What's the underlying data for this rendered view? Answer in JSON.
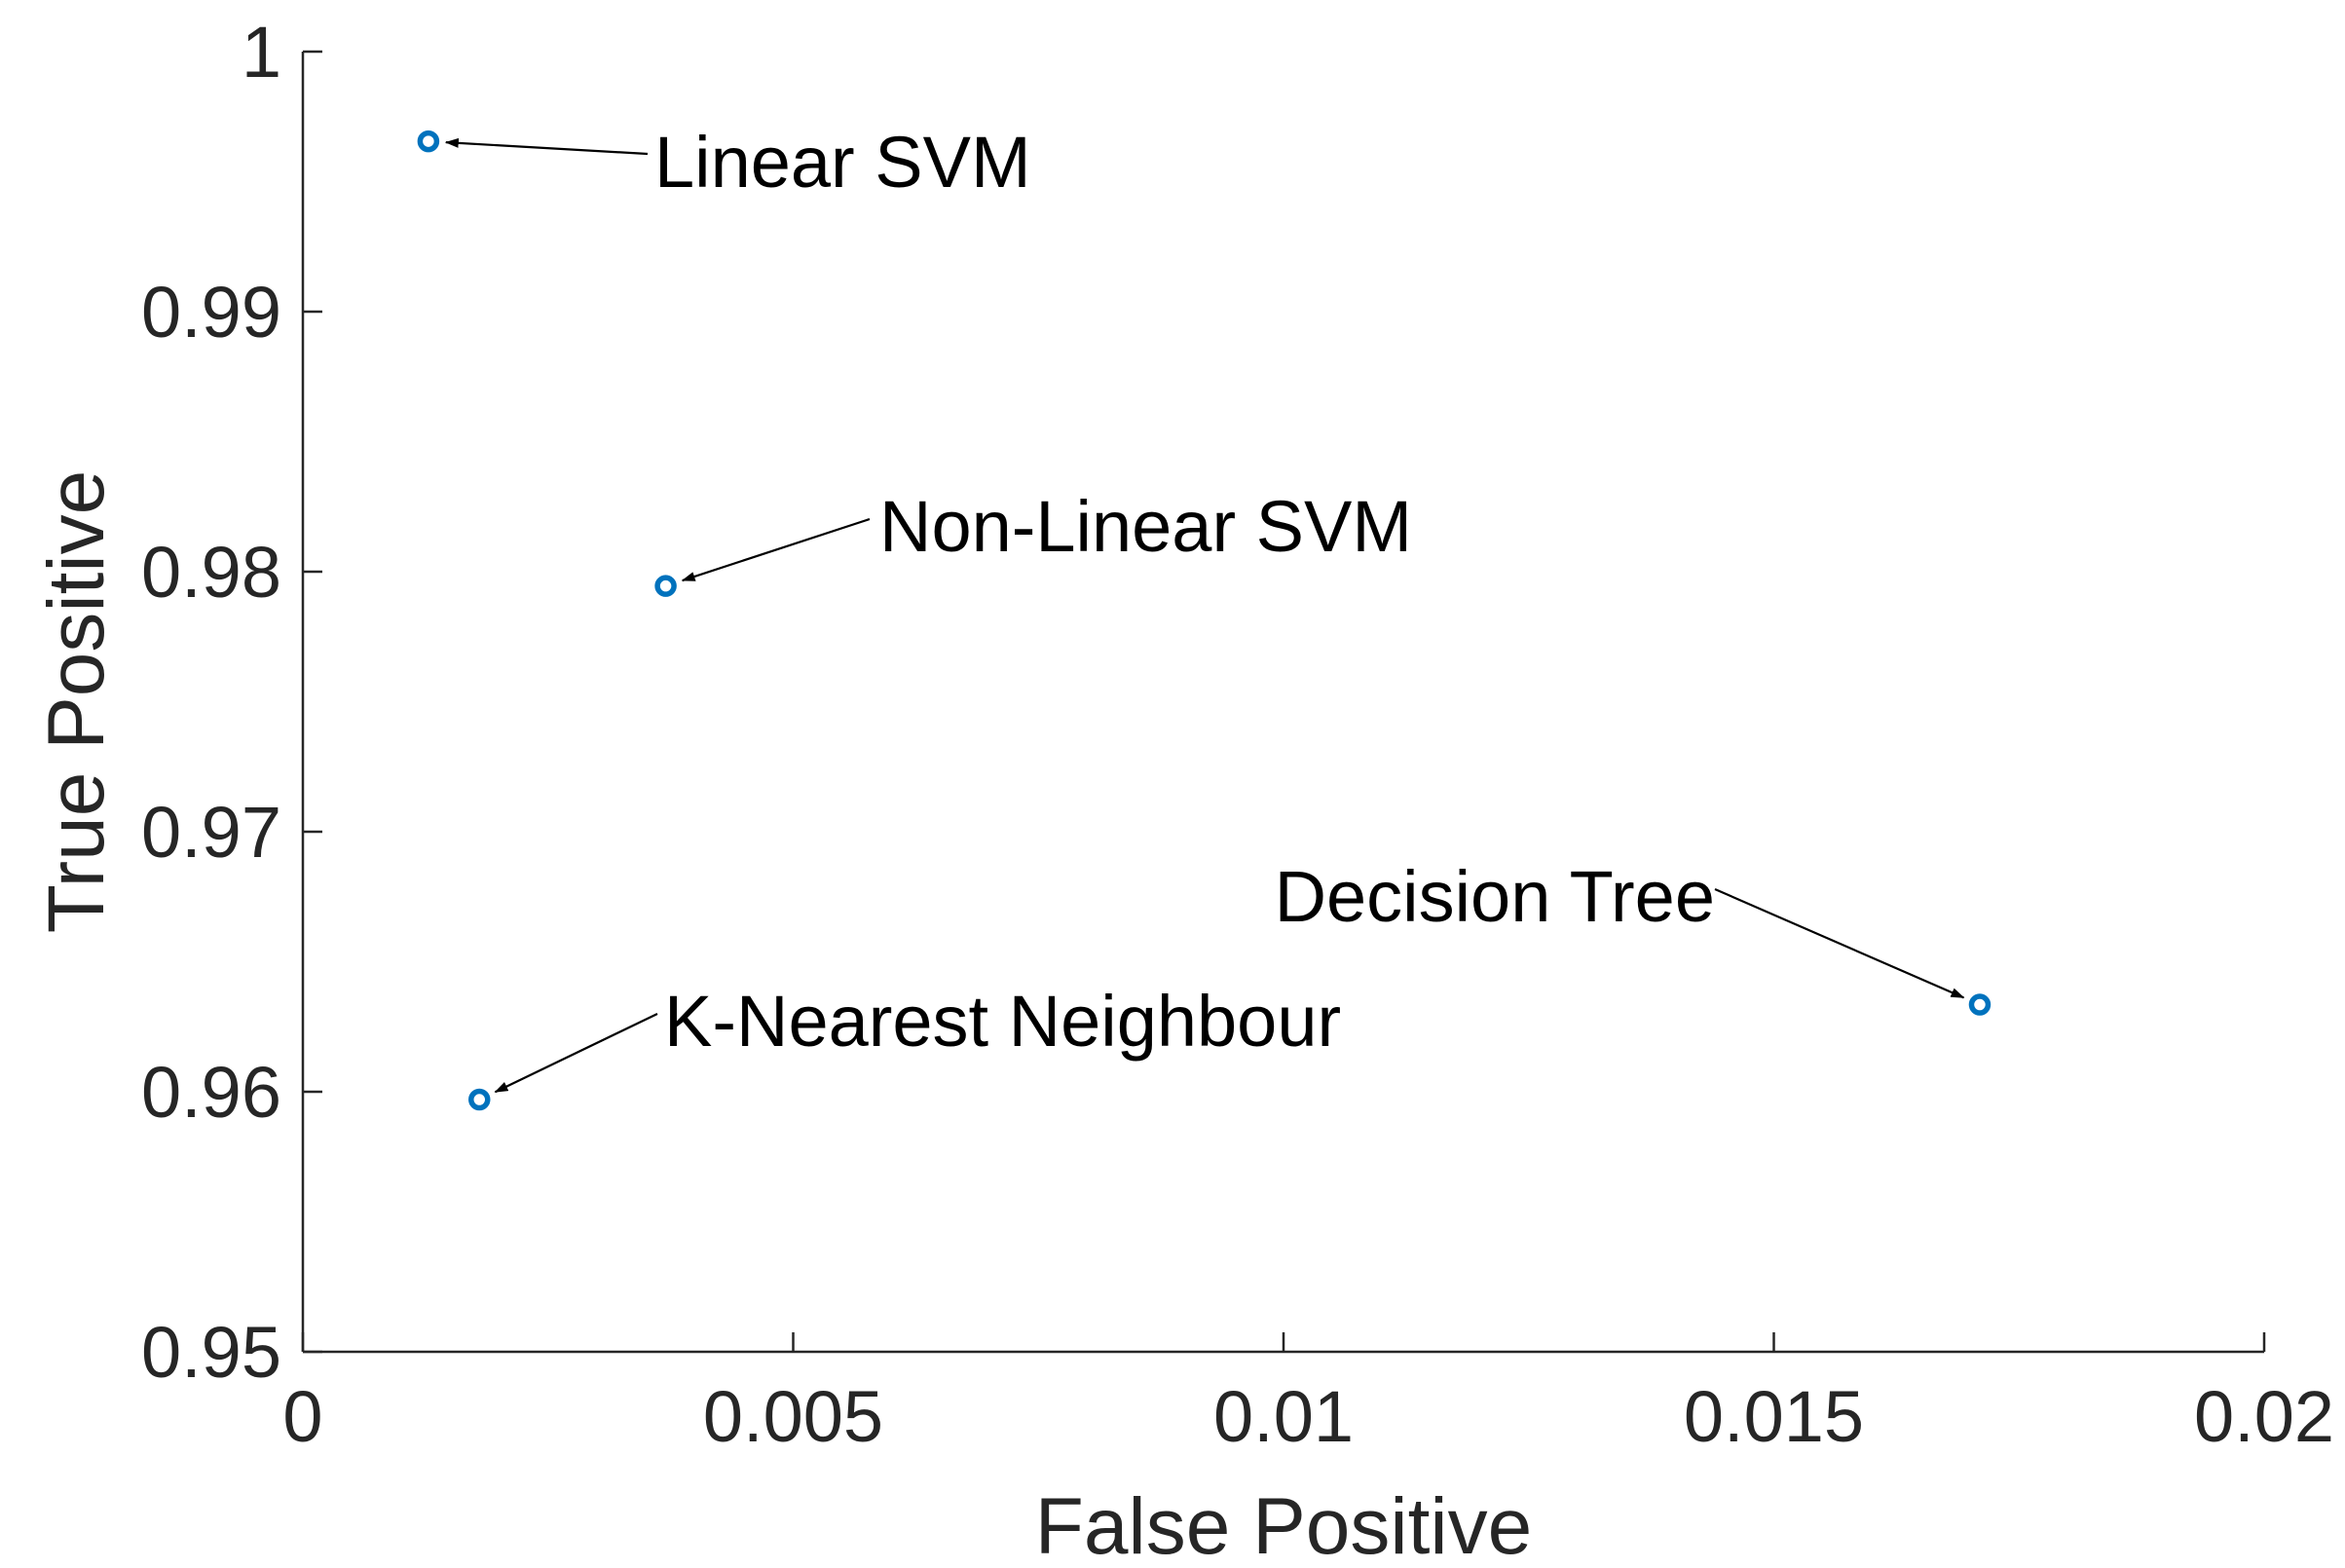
{
  "chart_data": {
    "type": "scatter",
    "title": "",
    "xlabel": "False Positive",
    "ylabel": "True Positive",
    "xlim": [
      0,
      0.02
    ],
    "ylim": [
      0.95,
      1
    ],
    "xticks": [
      0,
      0.005,
      0.01,
      0.015,
      0.02
    ],
    "xtick_labels": [
      "0",
      "0.005",
      "0.01",
      "0.015",
      "0.02"
    ],
    "yticks": [
      0.95,
      0.96,
      0.97,
      0.98,
      0.99,
      1
    ],
    "ytick_labels": [
      "0.95",
      "0.96",
      "0.97",
      "0.98",
      "0.99",
      "1"
    ],
    "grid": false,
    "marker": "open-circle",
    "marker_color": "#0072BD",
    "points": [
      {
        "label": "Linear SVM",
        "x": 0.00128,
        "y": 0.99655
      },
      {
        "label": "Non-Linear SVM",
        "x": 0.0037,
        "y": 0.97945
      },
      {
        "label": "K-Nearest Neighbour",
        "x": 0.0018,
        "y": 0.9597
      },
      {
        "label": "Decision Tree",
        "x": 0.0171,
        "y": 0.96335
      }
    ]
  }
}
